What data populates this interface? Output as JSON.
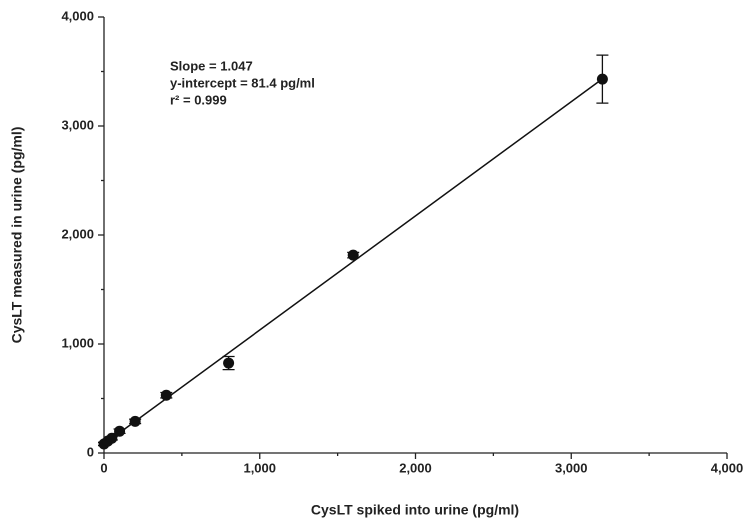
{
  "chart_data": {
    "type": "scatter",
    "xlabel": "CysLT spiked into urine (pg/ml)",
    "ylabel": "CysLT measured in urine (pg/ml)",
    "annotations": [
      "Slope = 1.047",
      "y-intercept = 81.4 pg/ml",
      "r² = 0.999"
    ],
    "x": [
      0,
      25,
      50,
      100,
      200,
      400,
      800,
      1600,
      3200
    ],
    "values": [
      83,
      110,
      135,
      200,
      290,
      530,
      825,
      1815,
      3430
    ],
    "errors": [
      15,
      15,
      15,
      20,
      20,
      25,
      60,
      25,
      220
    ],
    "color": "#111111",
    "fit": {
      "x": [
        0,
        3200
      ],
      "values": [
        81,
        3432
      ]
    },
    "xlim": [
      0,
      4000
    ],
    "ylim": [
      0,
      4000
    ],
    "xticks": [
      0,
      {
        "value": 1000,
        "label": "1,000"
      },
      {
        "value": 2000,
        "label": "2,000"
      },
      {
        "value": 3000,
        "label": "3,000"
      },
      {
        "value": 4000,
        "label": "4,000"
      }
    ],
    "yticks": [
      0,
      {
        "value": 1000,
        "label": "1,000"
      },
      {
        "value": 2000,
        "label": "2,000"
      },
      {
        "value": 3000,
        "label": "3,000"
      },
      {
        "value": 4000,
        "label": "4,000"
      }
    ],
    "xminor": [
      500,
      1500,
      2500,
      3500
    ],
    "yminor": [
      500,
      1500,
      2500,
      3500
    ]
  }
}
